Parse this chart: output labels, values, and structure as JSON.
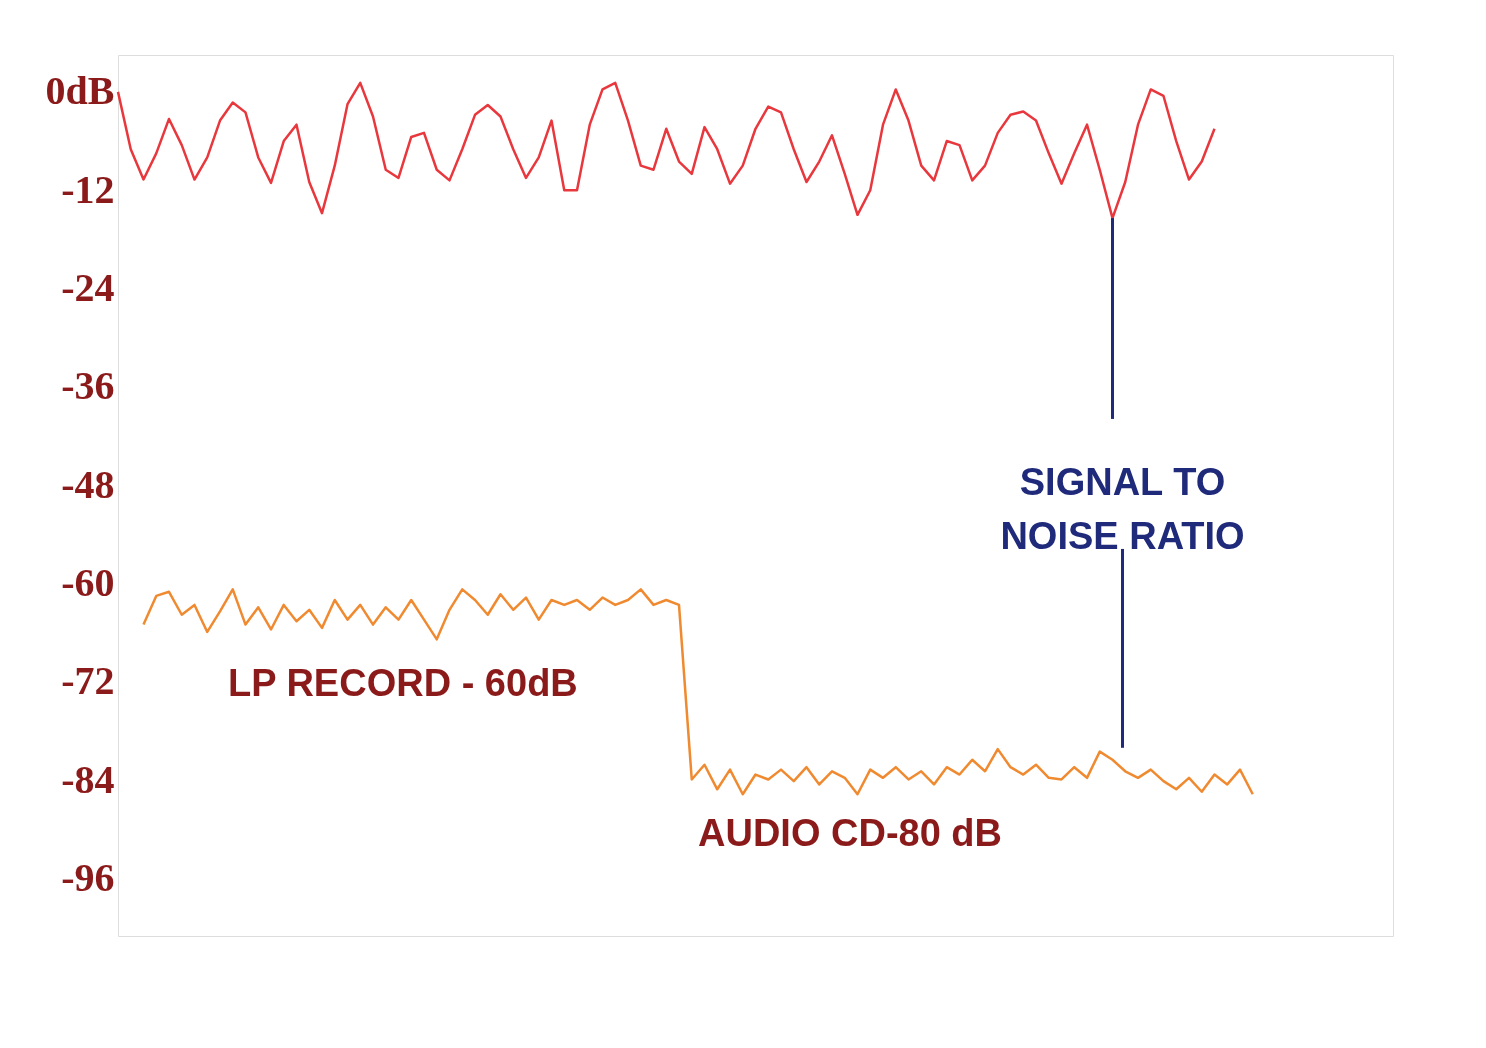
{
  "chart_data": {
    "type": "line",
    "categories": [
      null,
      null,
      null,
      null,
      null,
      null,
      null,
      null,
      null,
      null,
      null,
      null,
      null,
      null,
      null,
      null,
      null,
      null,
      null,
      null,
      null,
      null,
      null,
      null,
      null,
      null,
      null,
      null,
      null,
      null,
      null,
      null,
      null,
      null,
      null,
      null,
      null,
      null,
      null,
      null,
      null,
      null,
      null,
      null,
      null,
      null,
      null,
      null,
      null,
      null,
      null,
      null,
      null,
      null,
      null,
      null,
      null,
      null,
      null,
      null,
      null,
      null,
      null,
      null,
      null,
      null,
      null,
      null,
      null,
      null,
      null,
      null,
      null,
      null,
      null,
      null,
      null,
      null,
      null,
      null,
      null,
      null,
      null,
      null,
      null,
      null,
      null,
      null,
      null,
      null,
      null,
      null,
      null,
      null,
      null,
      null,
      null,
      null,
      null,
      null,
      null
    ],
    "ylim": [
      -103,
      4.5
    ],
    "yticks": [
      {
        "value": 0,
        "label": "0dB"
      },
      -12,
      -24,
      -36,
      -48,
      -60,
      -72,
      -84,
      -96
    ],
    "tick_labels": "y",
    "grid": false,
    "marker": "none",
    "line_style": "solid",
    "series": [
      {
        "color": "#e8383d",
        "values": [
          0,
          -7,
          -10.7,
          -7.5,
          -3.3,
          -6.5,
          -10.7,
          -8,
          -3.5,
          -1.3,
          -2.5,
          -8,
          -11.1,
          -6,
          -4,
          -11,
          -14.8,
          -9,
          -1.5,
          1.1,
          -3,
          -9.5,
          -10.5,
          -5.5,
          -5,
          -9.5,
          -10.8,
          -7,
          -2.8,
          -1.6,
          -3,
          -7,
          -10.5,
          -8,
          -3.5,
          -12,
          -12,
          -4,
          0.3,
          1.1,
          -3.5,
          -9,
          -9.5,
          -4.5,
          -8.5,
          -10,
          -4.3,
          -7,
          -11.2,
          -9,
          -4.5,
          -1.8,
          -2.5,
          -7,
          -11,
          -8.5,
          -5.3,
          -10,
          -15,
          -12,
          -4,
          0.3,
          -3.5,
          -9,
          -10.8,
          -6,
          -6.5,
          -10.8,
          -9,
          -5,
          -2.8,
          -2.4,
          -3.5,
          -7.5,
          -11.2,
          -7.5,
          -4,
          -9.5,
          -15.4,
          -11,
          -4,
          0.3,
          -0.5,
          -6,
          -10.7,
          -8.5,
          -4.5,
          null,
          null,
          null,
          null,
          null,
          null,
          null,
          null,
          null,
          null,
          null,
          null,
          null,
          null
        ]
      },
      {
        "color": "#f08a30",
        "values": [
          null,
          null,
          -65,
          -61.5,
          -61,
          -63.8,
          -62.6,
          -65.9,
          -63.4,
          -60.7,
          -65,
          -62.9,
          -65.6,
          -62.6,
          -64.6,
          -63.2,
          -65.4,
          -62,
          -64.4,
          -62.6,
          -65,
          -62.9,
          -64.4,
          -62,
          -64.4,
          -66.8,
          -63.2,
          -60.7,
          -62,
          -63.8,
          -61.3,
          -63.2,
          -61.7,
          -64.4,
          -62,
          -62.6,
          -62,
          -63.2,
          -61.7,
          -62.6,
          -62,
          -60.7,
          -62.6,
          -62,
          -62.6,
          -83.9,
          -82.1,
          -85.1,
          -82.7,
          -85.7,
          -83.3,
          -83.9,
          -82.7,
          -84.1,
          -82.4,
          -84.5,
          -82.9,
          -83.7,
          -85.7,
          -82.7,
          -83.7,
          -82.4,
          -83.9,
          -82.9,
          -84.5,
          -82.4,
          -83.3,
          -81.5,
          -82.9,
          -80.2,
          -82.4,
          -83.3,
          -82.1,
          -83.7,
          -83.9,
          -82.4,
          -83.7,
          -80.5,
          -81.5,
          -82.9,
          -83.7,
          -82.7,
          -84.1,
          -85.1,
          -83.7,
          -85.4,
          -83.3,
          -84.5,
          -82.7,
          -85.7,
          null,
          null,
          null,
          null,
          null,
          null,
          null,
          null,
          null,
          null,
          null
        ]
      }
    ],
    "annotations": [
      "SIGNAL TO\nNOISE RATIO",
      "LP RECORD - 60dB",
      "AUDIO CD-80 dB"
    ]
  }
}
